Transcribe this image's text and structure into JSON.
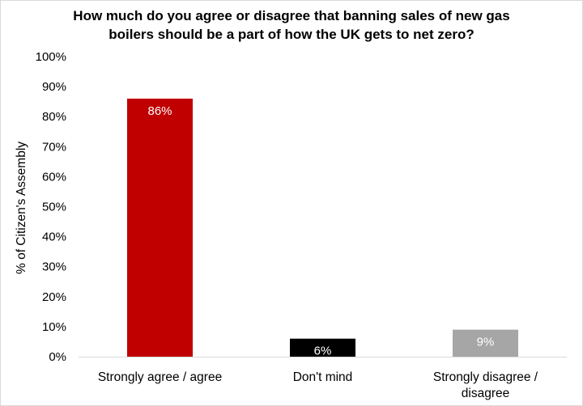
{
  "chart_data": {
    "type": "bar",
    "title_lines": [
      "How much do you agree or disagree that banning sales of new gas",
      "boilers should be a part of how the UK gets to net zero?"
    ],
    "ylabel": "% of Citizen's Assembly",
    "xlabel": "",
    "ylim": [
      0,
      100
    ],
    "yticks": [
      "0%",
      "10%",
      "20%",
      "30%",
      "40%",
      "50%",
      "60%",
      "70%",
      "80%",
      "90%",
      "100%"
    ],
    "grid": false,
    "categories": [
      [
        "Strongly agree / agree"
      ],
      [
        "Don't mind"
      ],
      [
        "Strongly disagree /",
        "disagree"
      ]
    ],
    "values": [
      86,
      6,
      9
    ],
    "data_labels": [
      "86%",
      "6%",
      "9%"
    ],
    "colors": [
      "#c00000",
      "#000000",
      "#a6a6a6"
    ]
  }
}
